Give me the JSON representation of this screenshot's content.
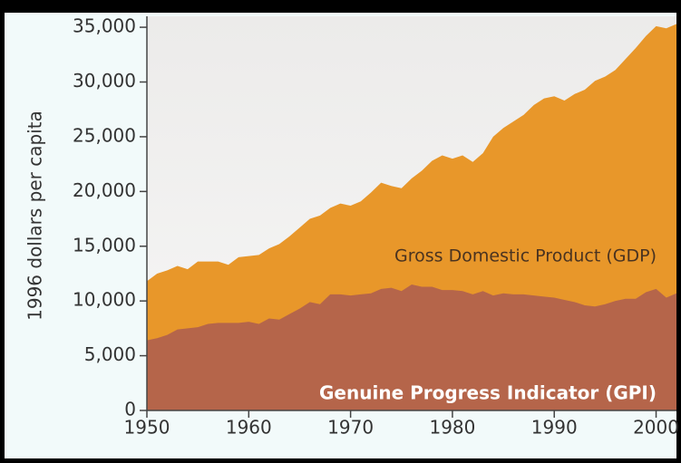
{
  "chart_data": {
    "type": "area",
    "ylabel": "1996 dollars per capita",
    "x": [
      1950,
      1951,
      1952,
      1953,
      1954,
      1955,
      1956,
      1957,
      1958,
      1959,
      1960,
      1961,
      1962,
      1963,
      1964,
      1965,
      1966,
      1967,
      1968,
      1969,
      1970,
      1971,
      1972,
      1973,
      1974,
      1975,
      1976,
      1977,
      1978,
      1979,
      1980,
      1981,
      1982,
      1983,
      1984,
      1985,
      1986,
      1987,
      1988,
      1989,
      1990,
      1991,
      1992,
      1993,
      1994,
      1995,
      1996,
      1997,
      1998,
      1999,
      2000,
      2001,
      2002
    ],
    "series": [
      {
        "name": "Gross Domestic Product (GDP)",
        "color": "#e8972a",
        "values": [
          11800,
          12500,
          12800,
          13200,
          12900,
          13600,
          13600,
          13600,
          13300,
          14000,
          14100,
          14200,
          14800,
          15200,
          15900,
          16700,
          17500,
          17800,
          18500,
          18900,
          18700,
          19100,
          19900,
          20800,
          20500,
          20300,
          21200,
          21900,
          22800,
          23300,
          23000,
          23300,
          22700,
          23500,
          25000,
          25800,
          26400,
          27000,
          27900,
          28500,
          28700,
          28300,
          28900,
          29300,
          30100,
          30500,
          31100,
          32100,
          33100,
          34200,
          35100,
          34900,
          35300
        ]
      },
      {
        "name": "Genuine Progress Indicator (GPI)",
        "color": "#b5654a",
        "values": [
          6400,
          6600,
          6900,
          7400,
          7500,
          7600,
          7900,
          8000,
          8000,
          8000,
          8100,
          7900,
          8400,
          8300,
          8800,
          9300,
          9900,
          9700,
          10600,
          10600,
          10500,
          10600,
          10700,
          11100,
          11200,
          10900,
          11500,
          11300,
          11300,
          11000,
          11000,
          10900,
          10600,
          10900,
          10500,
          10700,
          10600,
          10600,
          10500,
          10400,
          10300,
          10100,
          9900,
          9600,
          9500,
          9700,
          10000,
          10200,
          10200,
          10800,
          11100,
          10300,
          10700
        ]
      }
    ],
    "xlim": [
      1950,
      2002
    ],
    "xticks": [
      1950,
      1960,
      1970,
      1980,
      1990,
      2000
    ],
    "ylim": [
      0,
      36000
    ],
    "yticks": [
      0,
      {
        "value": 5000,
        "label": "5,000"
      },
      {
        "value": 10000,
        "label": "10,000"
      },
      {
        "value": 15000,
        "label": "15,000"
      },
      {
        "value": 20000,
        "label": "20,000"
      },
      {
        "value": 25000,
        "label": "25,000"
      },
      {
        "value": 30000,
        "label": "30,000"
      },
      {
        "value": 35000,
        "label": "35,000"
      }
    ]
  }
}
